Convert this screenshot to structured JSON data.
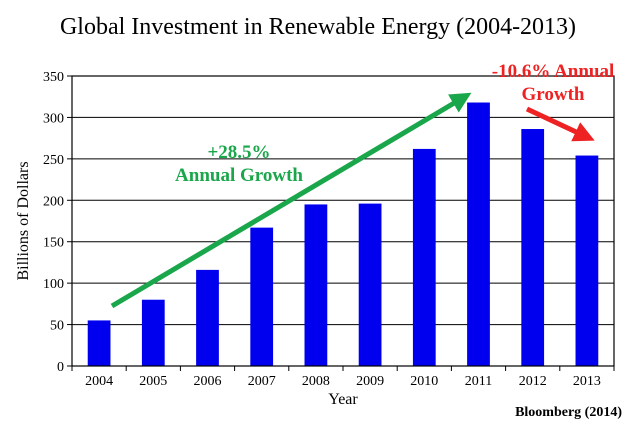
{
  "chart_data": {
    "type": "bar",
    "title": "Global Investment in Renewable Energy (2004-2013)",
    "xlabel": "Year",
    "ylabel": "Billions of Dollars",
    "categories": [
      "2004",
      "2005",
      "2006",
      "2007",
      "2008",
      "2009",
      "2010",
      "2011",
      "2012",
      "2013"
    ],
    "values": [
      55,
      80,
      116,
      167,
      195,
      196,
      262,
      318,
      286,
      254
    ],
    "ylim": [
      0,
      350
    ],
    "yticks": [
      0,
      50,
      100,
      150,
      200,
      250,
      300,
      350
    ],
    "grid": true,
    "bar_color": "#0000ee",
    "annotations": [
      {
        "line1": "+28.5%",
        "line2": "Annual Growth",
        "color": "#1aa64a"
      },
      {
        "line1": "-10.6% Annual",
        "line2": "Growth",
        "color": "#ee2222"
      }
    ],
    "source": "Bloomberg (2014)"
  }
}
